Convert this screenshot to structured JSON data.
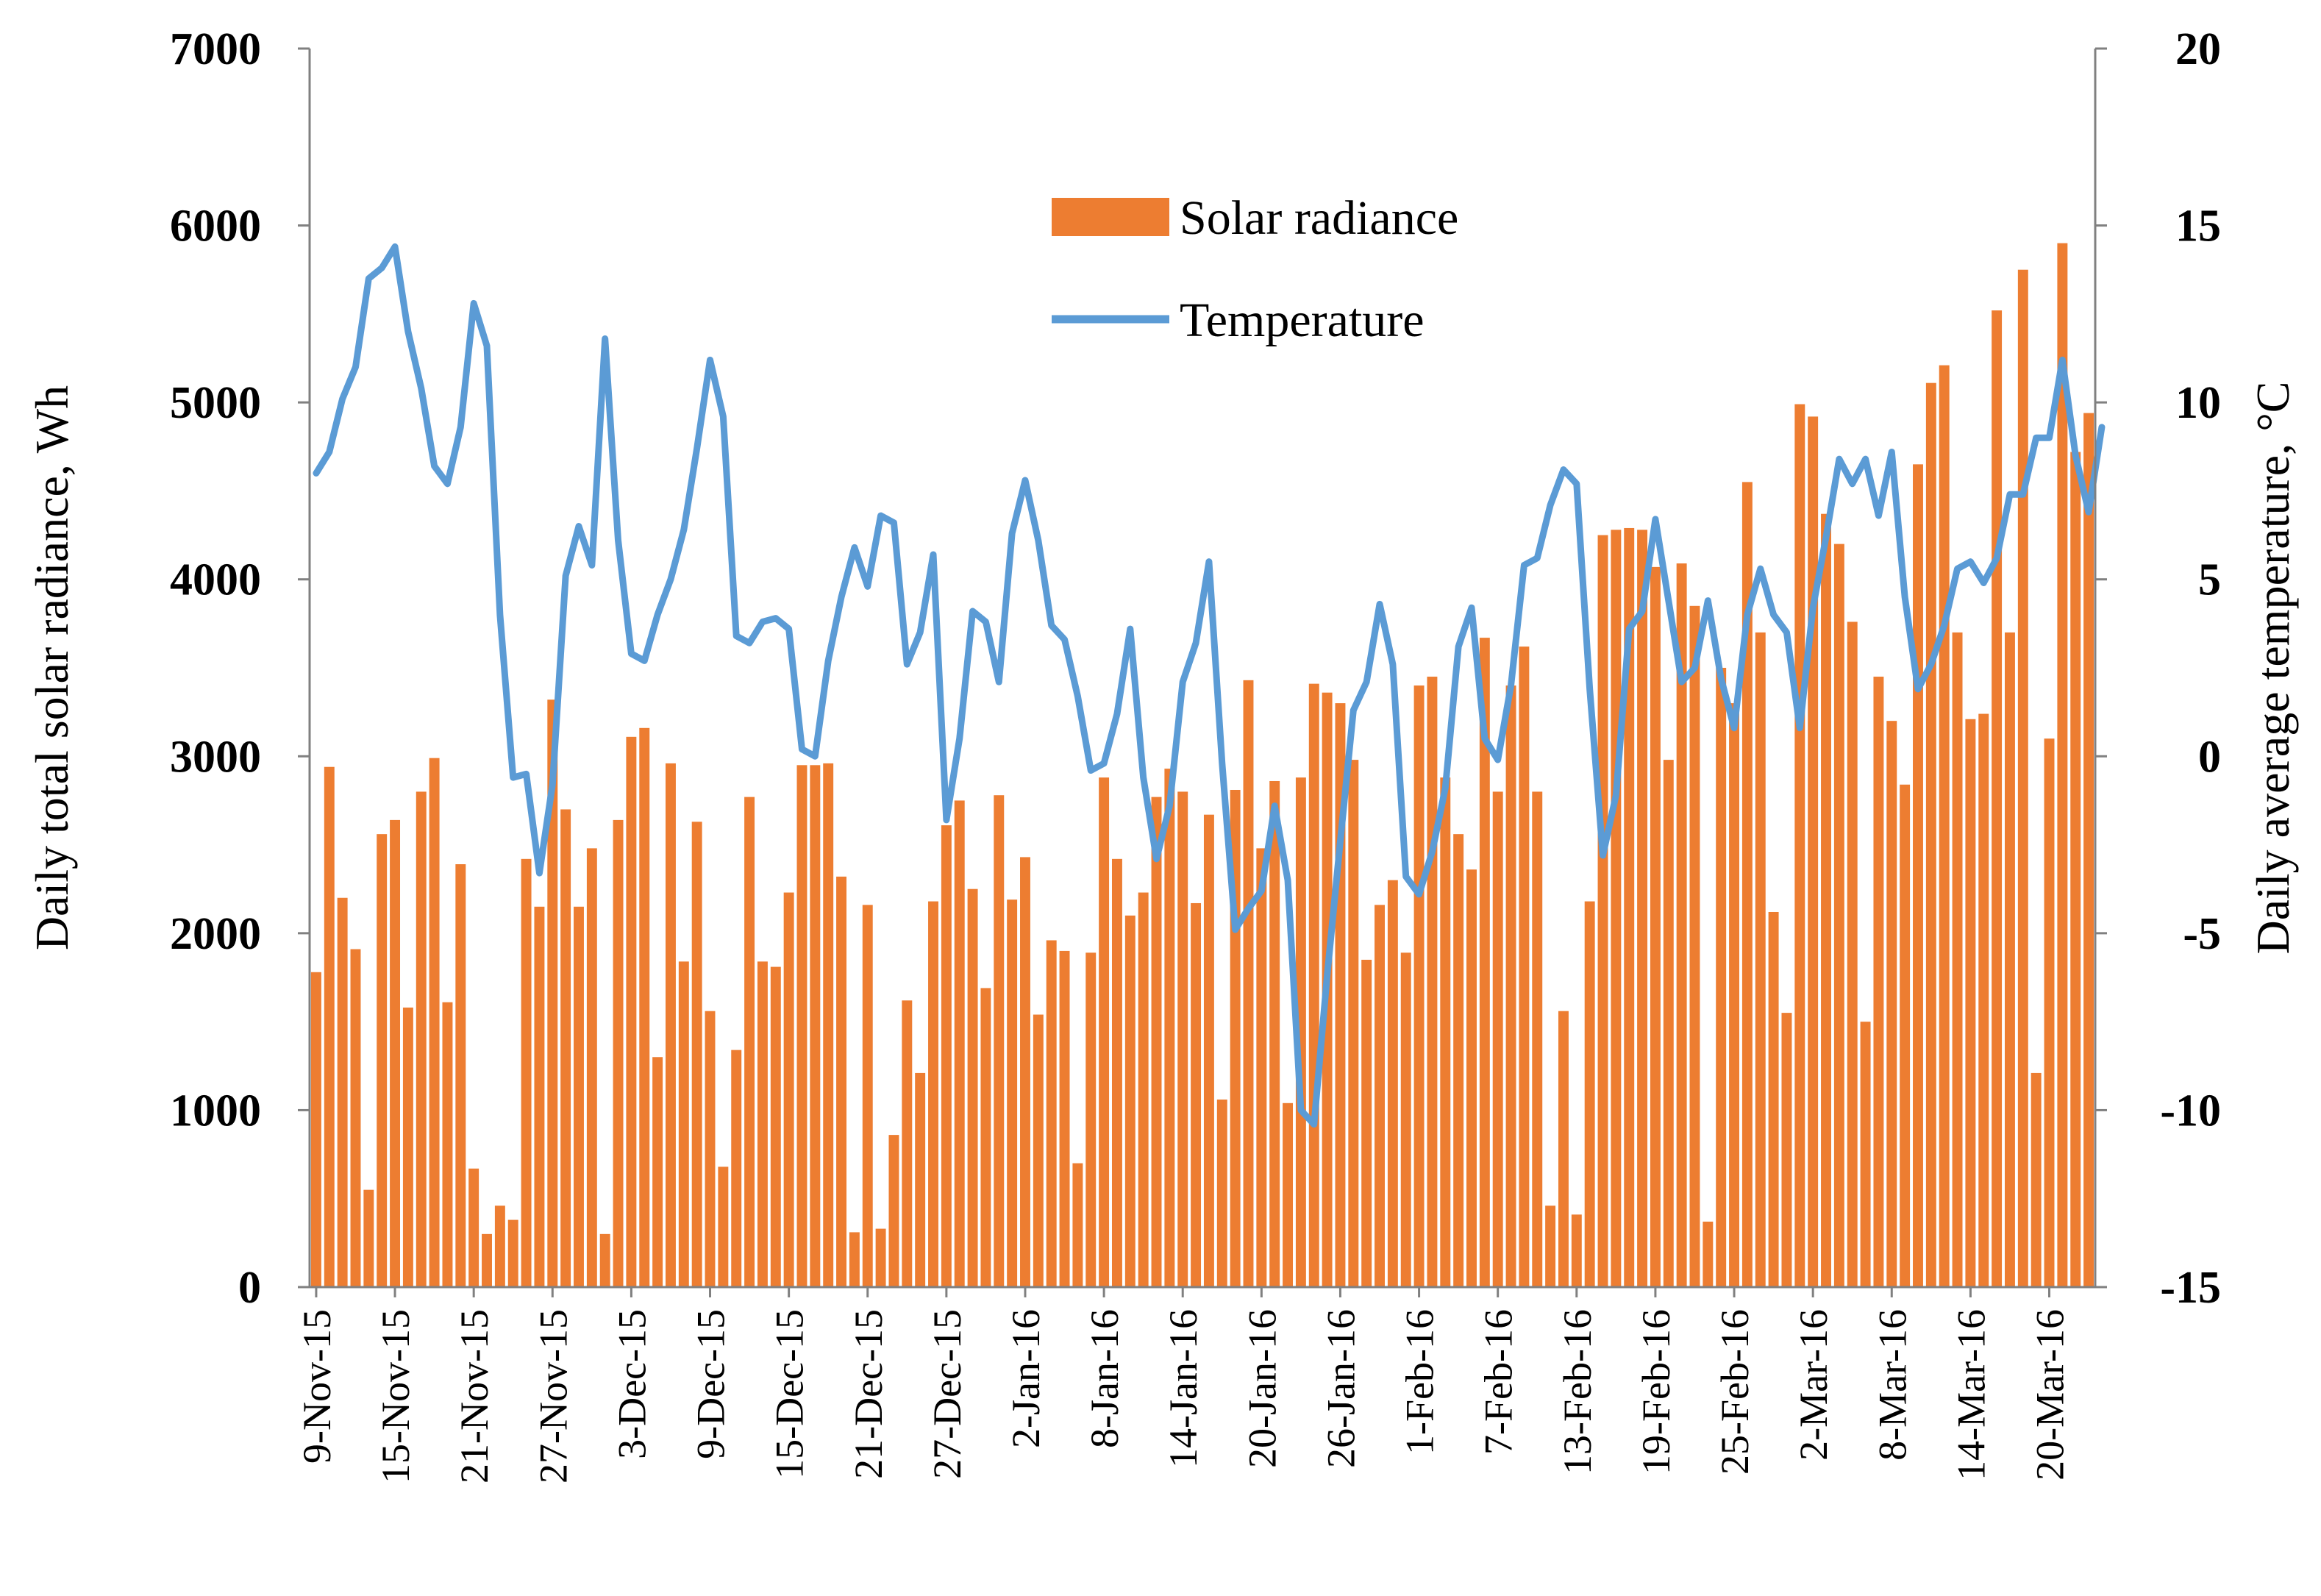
{
  "chart_data": {
    "type": "bar+line",
    "title": "",
    "ylabel": "Daily total  solar radiance, Wh",
    "y2label": "Daily average temperature, °C",
    "ylim": [
      0,
      7000
    ],
    "y2lim": [
      -15,
      20
    ],
    "yticks": [
      "0",
      "1000",
      "2000",
      "3000",
      "4000",
      "5000",
      "6000",
      "7000"
    ],
    "y2ticks": [
      "-15",
      "-10",
      "-5",
      "0",
      "5",
      "10",
      "15",
      "20"
    ],
    "xtick_labels": [
      "9-Nov-15",
      "15-Nov-15",
      "21-Nov-15",
      "27-Nov-15",
      "3-Dec-15",
      "9-Dec-15",
      "15-Dec-15",
      "21-Dec-15",
      "27-Dec-15",
      "2-Jan-16",
      "8-Jan-16",
      "14-Jan-16",
      "20-Jan-16",
      "26-Jan-16",
      "1-Feb-16",
      "7-Feb-16",
      "13-Feb-16",
      "19-Feb-16",
      "25-Feb-16",
      "2-Mar-16",
      "8-Mar-16",
      "14-Mar-16",
      "20-Mar-16"
    ],
    "start_date": "9-Nov-15",
    "legend": {
      "position": "top-center",
      "entries": [
        "Solar radiance",
        "Temperature"
      ]
    },
    "colors": {
      "bars": "#ED7D31",
      "line": "#5B9BD5",
      "axis": "#808080"
    },
    "series": [
      {
        "name": "Solar radiance",
        "type": "bar",
        "axis": "left",
        "values": [
          1780,
          2940,
          2200,
          1910,
          550,
          2560,
          2640,
          1580,
          2800,
          2990,
          1610,
          2390,
          670,
          300,
          460,
          380,
          2420,
          2150,
          3320,
          2700,
          2150,
          2480,
          300,
          2640,
          3110,
          3160,
          1300,
          2960,
          1840,
          2630,
          1560,
          680,
          1340,
          2770,
          1840,
          1810,
          2230,
          2950,
          2950,
          2960,
          2320,
          310,
          2160,
          330,
          860,
          1620,
          1210,
          2180,
          2610,
          2750,
          2250,
          1690,
          2780,
          2190,
          2430,
          1540,
          1960,
          1900,
          700,
          1890,
          2880,
          2420,
          2100,
          2230,
          2770,
          2930,
          2800,
          2170,
          2670,
          1060,
          2810,
          3430,
          2480,
          2860,
          1040,
          2880,
          3410,
          3360,
          3300,
          2980,
          1850,
          2160,
          2300,
          1890,
          3400,
          3450,
          2880,
          2560,
          2360,
          3670,
          2800,
          3400,
          3620,
          2800,
          460,
          1560,
          410,
          2180,
          4250,
          4280,
          4290,
          4280,
          4070,
          2980,
          4090,
          3850,
          370,
          3500,
          3300,
          4550,
          3700,
          2120,
          1550,
          4990,
          4920,
          4370,
          4200,
          3760,
          1500,
          3450,
          3200,
          2840,
          4650,
          5110,
          5210,
          3700,
          3210,
          3240,
          5520,
          3700,
          5750,
          1210,
          3100,
          5900,
          4720,
          4940
        ]
      },
      {
        "name": "Temperature",
        "type": "line",
        "axis": "right",
        "values": [
          8.0,
          8.6,
          10.1,
          11.0,
          13.5,
          13.8,
          14.4,
          12.0,
          10.4,
          8.2,
          7.7,
          9.3,
          12.8,
          11.6,
          4.0,
          -0.6,
          -0.5,
          -3.3,
          -0.8,
          5.1,
          6.5,
          5.4,
          11.8,
          6.1,
          2.9,
          2.7,
          4.0,
          5.0,
          6.4,
          8.7,
          11.2,
          9.6,
          3.4,
          3.2,
          3.8,
          3.9,
          3.6,
          0.2,
          0.0,
          2.7,
          4.5,
          5.9,
          4.8,
          6.8,
          6.6,
          2.6,
          3.5,
          5.7,
          -1.8,
          0.5,
          4.1,
          3.8,
          2.1,
          6.3,
          7.8,
          6.1,
          3.7,
          3.3,
          1.7,
          -0.4,
          -0.2,
          1.2,
          3.6,
          -0.6,
          -2.9,
          -1.4,
          2.1,
          3.2,
          5.5,
          -0.2,
          -4.9,
          -4.3,
          -3.8,
          -1.4,
          -3.5,
          -10.0,
          -10.4,
          -6.2,
          -2.4,
          1.3,
          2.1,
          4.3,
          2.6,
          -3.4,
          -3.9,
          -2.7,
          -0.9,
          3.1,
          4.2,
          0.5,
          -0.1,
          2.0,
          5.4,
          5.6,
          7.1,
          8.1,
          7.7,
          1.9,
          -2.8,
          -1.1,
          3.6,
          4.1,
          6.7,
          4.4,
          2.1,
          2.5,
          4.4,
          2.2,
          0.8,
          4.0,
          5.3,
          4.0,
          3.5,
          0.8,
          4.2,
          6.2,
          8.4,
          7.7,
          8.4,
          6.8,
          8.6,
          4.5,
          1.9,
          2.6,
          3.7,
          5.3,
          5.5,
          4.9,
          5.6,
          7.4,
          7.4,
          9.0,
          9.0,
          11.2,
          8.5,
          6.9,
          9.3
        ]
      }
    ]
  }
}
